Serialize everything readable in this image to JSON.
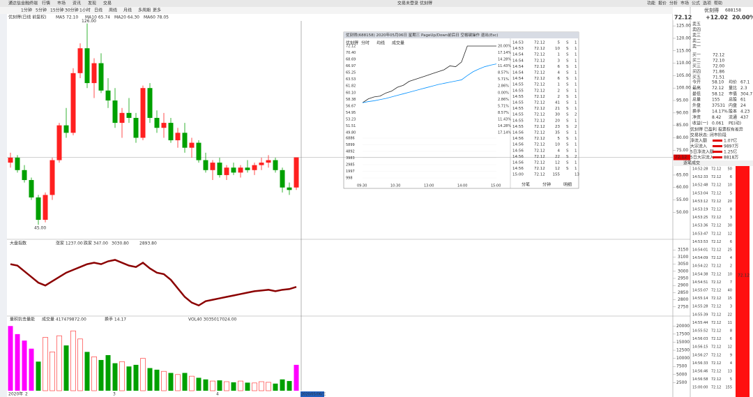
{
  "window": {
    "menu": [
      "通达信金融终端",
      "行情",
      "市场",
      "资讯",
      "发现",
      "交易"
    ],
    "center": [
      "交易未登录",
      "优刻得"
    ],
    "right_menu": [
      "功能",
      "报价",
      "分析",
      "市场",
      "公式",
      "选项",
      "帮助"
    ],
    "periods": [
      "1分钟",
      "5分钟",
      "15分钟",
      "30分钟",
      "1小时",
      "日线",
      "周线",
      "月线",
      "多周期",
      "更多"
    ],
    "stock_line": "优刻得(日线 前复权)",
    "ma_legend": [
      "MA5 72.10",
      "MA10 65.74",
      "MA20 64.30",
      "MA60 78.05"
    ],
    "bottom_date": "2020/05/06/三",
    "dates": [
      "2020年",
      "2",
      "3",
      "4"
    ]
  },
  "chart_data": [
    {
      "type": "candlestick",
      "title": "优刻得",
      "ylim": [
        40,
        127
      ],
      "yticks": [
        {
          "value": 125,
          "label": "125.00"
        },
        {
          "value": 120,
          "label": "120.00"
        },
        {
          "value": 115,
          "label": "115.00"
        },
        {
          "value": 110,
          "label": "110.00"
        },
        {
          "value": 105,
          "label": "105.00"
        },
        {
          "value": 100,
          "label": "100.00"
        },
        {
          "value": 95,
          "label": "95.00"
        },
        {
          "value": 90,
          "label": "90.00"
        },
        {
          "value": 85,
          "label": "85.00"
        },
        {
          "value": 80,
          "label": "80.00"
        },
        {
          "value": 75,
          "label": "75.00"
        },
        {
          "value": 70,
          "label": "70.00"
        },
        {
          "value": 65,
          "label": "65.00"
        },
        {
          "value": 60,
          "label": "60.00"
        },
        {
          "value": 55,
          "label": "55.00"
        },
        {
          "value": 50,
          "label": "50.00"
        }
      ],
      "last": {
        "value": 72.12,
        "label": "72.12"
      },
      "high_label": {
        "value": 126,
        "label": "126.00"
      },
      "low_label": {
        "value": 45,
        "label": "45.00"
      },
      "open": [
        70,
        72,
        67,
        63,
        56,
        47,
        57,
        71,
        85,
        82,
        106,
        116,
        102,
        110,
        99,
        95,
        86,
        90,
        88,
        80,
        100,
        88,
        84,
        86,
        79,
        82,
        76,
        78,
        71,
        67,
        70,
        65,
        68,
        66,
        68,
        67,
        69,
        70,
        71,
        67,
        60,
        60
      ],
      "high": [
        74,
        73,
        69,
        64,
        57,
        58,
        72,
        86,
        92,
        108,
        118,
        126,
        112,
        114,
        104,
        100,
        92,
        96,
        90,
        101,
        102,
        91,
        90,
        88,
        84,
        86,
        80,
        79,
        74,
        71,
        72,
        69,
        70,
        69,
        71,
        70,
        72,
        73,
        72,
        68,
        62,
        72.12
      ],
      "low": [
        68,
        66,
        62,
        55,
        45,
        46,
        55,
        70,
        80,
        81,
        104,
        100,
        96,
        98,
        92,
        84,
        80,
        86,
        78,
        79,
        86,
        82,
        80,
        78,
        76,
        74,
        72,
        70,
        66,
        63,
        64,
        63,
        65,
        64,
        66,
        65,
        67,
        68,
        66,
        58,
        57,
        59
      ],
      "close": [
        72,
        67,
        63,
        56,
        47,
        57,
        71,
        85,
        82,
        106,
        116,
        102,
        110,
        99,
        95,
        86,
        90,
        88,
        80,
        100,
        88,
        84,
        86,
        79,
        82,
        76,
        78,
        71,
        67,
        70,
        65,
        68,
        66,
        68,
        67,
        69,
        70,
        71,
        67,
        60,
        59,
        72.12
      ],
      "up_color": "#ff2020",
      "down_color": "#00a000"
    },
    {
      "type": "line",
      "title": "大盘指数",
      "legend": [
        "涨家 1237.00",
        "跌家 347.00",
        "3030.80",
        "2893.80"
      ],
      "ylim": [
        2700,
        3200
      ],
      "yticks": [
        3150,
        3100,
        3050,
        3000,
        2950,
        2900,
        2850,
        2800,
        2750
      ],
      "color": "#8b0000",
      "values": [
        3050,
        3040,
        3000,
        2960,
        2920,
        2900,
        2930,
        2960,
        2990,
        3010,
        3030,
        3050,
        3060,
        3050,
        3070,
        3080,
        3060,
        3040,
        3030,
        3060,
        3020,
        2990,
        2980,
        2940,
        2880,
        2820,
        2780,
        2760,
        2790,
        2800,
        2810,
        2820,
        2830,
        2840,
        2850,
        2860,
        2865,
        2870,
        2860,
        2870,
        2875,
        2890
      ]
    },
    {
      "type": "bar",
      "title": "量积抗击量能",
      "legend": [
        "成交量 417479872.00",
        "换手 14.17",
        "VOL40 3035017024.00"
      ],
      "ylim": [
        0,
        22000
      ],
      "yticks": [
        20000,
        17500,
        15000,
        12500,
        10000,
        7500,
        5000,
        2500
      ],
      "color": "#ff00ff",
      "values": [
        20000,
        17500,
        15500,
        13000,
        9000,
        16500,
        12000,
        17000,
        14000,
        18500,
        16000,
        12000,
        10500,
        9500,
        11000,
        8500,
        9000,
        7500,
        8000,
        10000,
        7000,
        6500,
        6000,
        5500,
        5000,
        5500,
        4500,
        4000,
        3500,
        3000,
        3200,
        2800,
        2600,
        3000,
        2500,
        2400,
        2800,
        2600,
        2200,
        3500,
        3000,
        8000
      ]
    }
  ],
  "popup": {
    "title": "优刻得(688158) 2020年05月06日 星期三 PageUp/Down前后日 空格键操作 退出(Esc)",
    "tabs": [
      "优刻得",
      "分时",
      "均线",
      "成交量"
    ],
    "price_labels": [
      "72.12",
      "70.40",
      "68.69",
      "66.97",
      "65.25",
      "63.53",
      "61.82",
      "60.10",
      "58.38",
      "56.67",
      "54.95",
      "53.23",
      "51.51",
      "49.80"
    ],
    "pct_labels": [
      "20.00%",
      "17.14%",
      "14.28%",
      "11.43%",
      "8.57%",
      "5.71%",
      "2.86%",
      "0.00%",
      "2.86%",
      "5.71%",
      "8.57%",
      "11.43%",
      "14.28%",
      "17.14%"
    ],
    "vol_labels": [
      "6886",
      "5899",
      "4892",
      "3983",
      "2985",
      "1997",
      "998"
    ],
    "time_labels": [
      "09:30",
      "10:30",
      "13:00",
      "14:00",
      "15:00"
    ],
    "ylim": [
      49.8,
      72.12
    ],
    "prices": [
      57.5,
      58.5,
      59,
      59.2,
      60,
      60.5,
      61.5,
      62,
      63,
      63.5,
      64,
      64.5,
      65,
      65.5,
      66,
      67,
      66.8,
      68,
      72.12,
      72.12,
      72.12,
      72.12,
      72.12,
      72.12
    ],
    "avg": [
      57.5,
      57.8,
      58,
      58.3,
      58.6,
      59,
      59.4,
      59.8,
      60.2,
      60.6,
      61,
      61.4,
      61.8,
      62.2,
      62.5,
      62.8,
      63.1,
      63.4,
      64.5,
      65.5,
      66.2,
      66.8,
      67.2,
      67.5
    ],
    "trades": [
      [
        "14:53",
        "72.12",
        "5",
        "S",
        "1"
      ],
      [
        "14:53",
        "72.12",
        "10",
        "S",
        "1"
      ],
      [
        "14:54",
        "72.12",
        "1",
        "S",
        "1"
      ],
      [
        "14:54",
        "72.12",
        "3",
        "S",
        "1"
      ],
      [
        "14:54",
        "72.12",
        "6",
        "S",
        "1"
      ],
      [
        "14:54",
        "72.12",
        "4",
        "S",
        "1"
      ],
      [
        "14:54",
        "72.12",
        "6",
        "S",
        "1"
      ],
      [
        "14:55",
        "72.12",
        "1",
        "S",
        "1"
      ],
      [
        "14:55",
        "72.12",
        "2",
        "S",
        "1"
      ],
      [
        "14:55",
        "72.12",
        "2",
        "S",
        "1"
      ],
      [
        "14:55",
        "72.12",
        "41",
        "S",
        "1"
      ],
      [
        "14:55",
        "72.12",
        "21",
        "S",
        "1"
      ],
      [
        "14:55",
        "72.12",
        "30",
        "S",
        "2"
      ],
      [
        "14:55",
        "72.12",
        "20",
        "S",
        "1"
      ],
      [
        "14:55",
        "72.12",
        "23",
        "S",
        "2"
      ],
      [
        "14:56",
        "72.12",
        "35",
        "S",
        "1"
      ],
      [
        "14:56",
        "72.12",
        "5",
        "S",
        "1"
      ],
      [
        "14:56",
        "72.12",
        "10",
        "S",
        "1"
      ],
      [
        "14:56",
        "72.12",
        "4",
        "S",
        "1"
      ],
      [
        "14:56",
        "72.12",
        "22",
        "S",
        "2"
      ],
      [
        "14:56",
        "72.12",
        "12",
        "S",
        "1"
      ],
      [
        "14:56",
        "72.12",
        "12",
        "S",
        "1"
      ],
      [
        "15:00",
        "72.12",
        "155",
        "",
        "13"
      ]
    ],
    "buttons": [
      "分笔",
      "分钟",
      "明细"
    ]
  },
  "quote": {
    "name": "优刻得",
    "code": "688158",
    "price": "72.12",
    "change": "+12.02",
    "pct": "20.00%",
    "book": [
      [
        "卖五",
        ""
      ],
      [
        "卖四",
        ""
      ],
      [
        "卖三",
        ""
      ],
      [
        "卖二",
        ""
      ],
      [
        "卖一",
        ""
      ],
      [
        "买一",
        "72.12"
      ],
      [
        "买二",
        "72.10"
      ],
      [
        "买三",
        "72.00"
      ],
      [
        "买四",
        "71.86"
      ],
      [
        "买五",
        "71.51"
      ]
    ],
    "stats": [
      [
        "今开",
        "58.10",
        "均价",
        "67.1"
      ],
      [
        "最高",
        "72.12",
        "量比",
        "2.3"
      ],
      [
        "最低",
        "58.12",
        "市值",
        "304.7"
      ],
      [
        "总量",
        "155",
        "总股",
        "61"
      ],
      [
        "外盘",
        "37531",
        "内盘",
        "24"
      ],
      [
        "换手",
        "14.17%",
        "股本",
        "4.23"
      ],
      [
        "净资",
        "8.42",
        "流通",
        "437"
      ],
      [
        "收益(一)",
        "0.061",
        "PE(动)",
        ""
      ]
    ],
    "notes": [
      "优刻得 已盈利 投票权有差异",
      "交易状态: 闭市阶段"
    ],
    "flows": [
      [
        "净流入额",
        "1.07亿"
      ],
      [
        "大宗流入",
        "9897万"
      ],
      [
        "5日净流入额",
        "1.25亿"
      ],
      [
        "5日大宗流入",
        "8818万"
      ]
    ],
    "tick_title": "逐笔成交",
    "ticks": [
      [
        "14:52:28",
        "72.12",
        "50"
      ],
      [
        "14:52:33",
        "72.12",
        "6"
      ],
      [
        "14:52:48",
        "72.12",
        "10"
      ],
      [
        "14:53:04",
        "72.12",
        "5"
      ],
      [
        "14:53:12",
        "72.12",
        "20"
      ],
      [
        "14:53:19",
        "72.12",
        "8"
      ],
      [
        "14:53:25",
        "72.12",
        "3"
      ],
      [
        "14:53:36",
        "72.12",
        "30"
      ],
      [
        "14:53:47",
        "72.12",
        "12"
      ],
      [
        "14:53:53",
        "72.12",
        "6"
      ],
      [
        "14:54:01",
        "72.12",
        "25"
      ],
      [
        "14:54:09",
        "72.12",
        "4"
      ],
      [
        "14:54:22",
        "72.12",
        "2"
      ],
      [
        "14:54:38",
        "72.12",
        "10"
      ],
      [
        "14:54:51",
        "72.12",
        "7"
      ],
      [
        "14:55:07",
        "72.12",
        "40"
      ],
      [
        "14:55:14",
        "72.12",
        "15"
      ],
      [
        "14:55:28",
        "72.12",
        "3"
      ],
      [
        "14:55:39",
        "72.12",
        "22"
      ],
      [
        "14:55:44",
        "72.12",
        "11"
      ],
      [
        "14:55:52",
        "72.12",
        "8"
      ],
      [
        "14:56:03",
        "72.12",
        "6"
      ],
      [
        "14:56:15",
        "72.12",
        "12"
      ],
      [
        "14:56:27",
        "72.12",
        "9"
      ],
      [
        "14:56:33",
        "72.12",
        "4"
      ],
      [
        "14:56:46",
        "72.12",
        "13"
      ],
      [
        "14:56:58",
        "72.12",
        "5"
      ],
      [
        "15:00:00",
        "72.12",
        "155"
      ]
    ],
    "bar_label": "72.12"
  }
}
